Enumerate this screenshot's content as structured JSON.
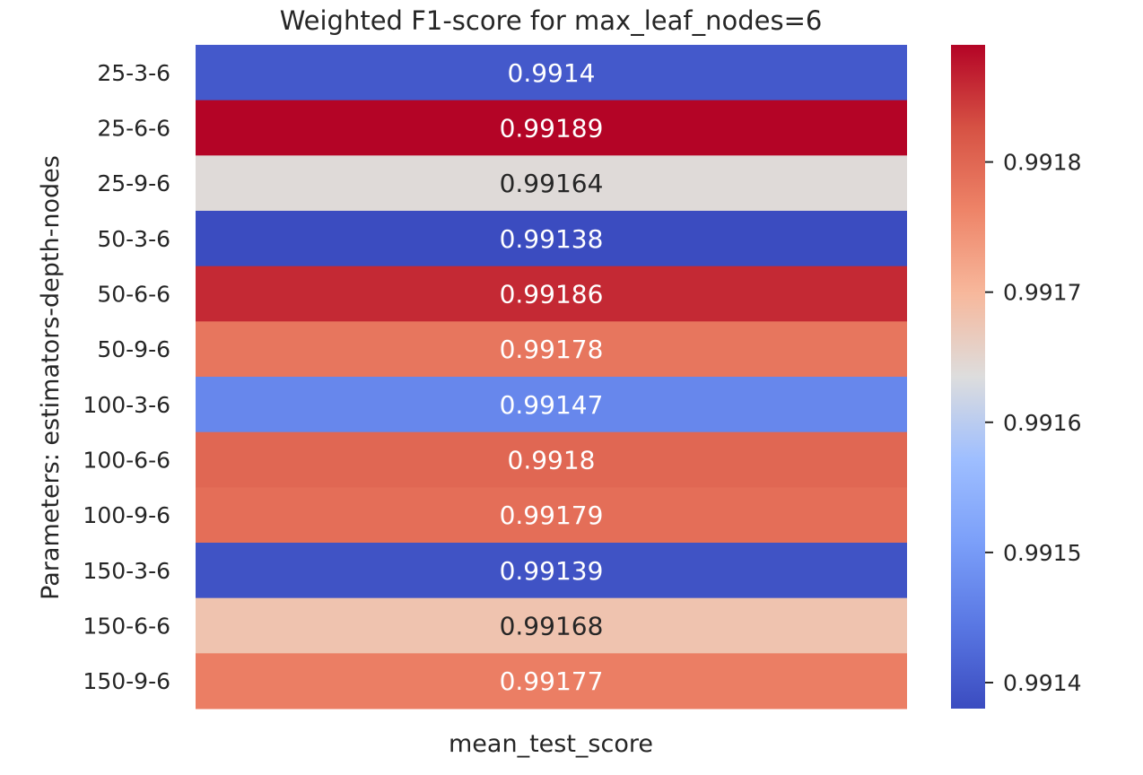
{
  "chart_data": {
    "type": "heatmap",
    "title": "Weighted F1-score for max_leaf_nodes=6",
    "xlabel": "mean_test_score",
    "ylabel": "Parameters: estimators-depth-nodes",
    "columns": [
      "mean_test_score"
    ],
    "rows": [
      "25-3-6",
      "25-6-6",
      "25-9-6",
      "50-3-6",
      "50-6-6",
      "50-9-6",
      "100-3-6",
      "100-6-6",
      "100-9-6",
      "150-3-6",
      "150-6-6",
      "150-9-6"
    ],
    "values": [
      0.9914,
      0.99189,
      0.99164,
      0.99138,
      0.99186,
      0.99178,
      0.99147,
      0.9918,
      0.99179,
      0.99139,
      0.99168,
      0.99177
    ],
    "value_labels": [
      "0.9914",
      "0.99189",
      "0.99164",
      "0.99138",
      "0.99186",
      "0.99178",
      "0.99147",
      "0.9918",
      "0.99179",
      "0.99139",
      "0.99168",
      "0.99177"
    ],
    "colormap": "coolwarm",
    "vmin": 0.99138,
    "vmax": 0.99189,
    "colorbar_ticks": [
      0.9914,
      0.9915,
      0.9916,
      0.9917,
      0.9918
    ],
    "colorbar_tick_labels": [
      "0.9914",
      "0.9915",
      "0.9916",
      "0.9917",
      "0.9918"
    ],
    "grid": false,
    "legend": "colorbar-right"
  }
}
